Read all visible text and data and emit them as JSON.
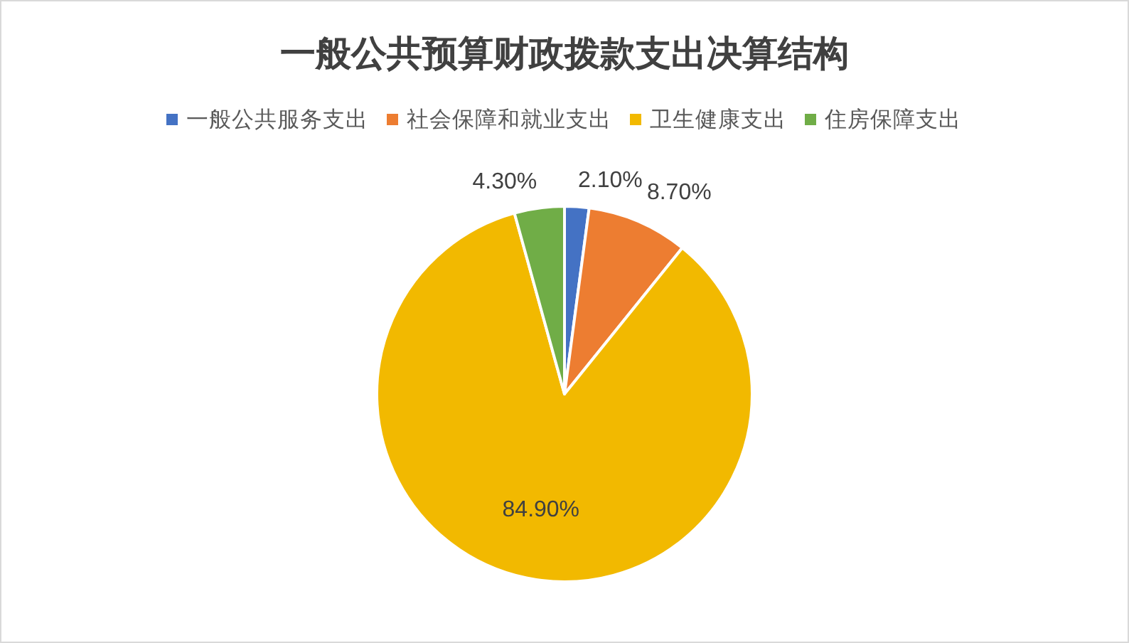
{
  "chart_data": {
    "type": "pie",
    "title": "一般公共预算财政拨款支出决算结构",
    "legend": "top",
    "categories": [
      "一般公共服务支出",
      "社会保障和就业支出",
      "卫生健康支出",
      "住房保障支出"
    ],
    "values": [
      2.1,
      8.7,
      84.9,
      4.3
    ],
    "colors": [
      "#4472c4",
      "#ed7d31",
      "#f2b900",
      "#70ad47"
    ],
    "value_labels": [
      "2.10%",
      "8.70%",
      "84.90%",
      "4.30%"
    ]
  }
}
